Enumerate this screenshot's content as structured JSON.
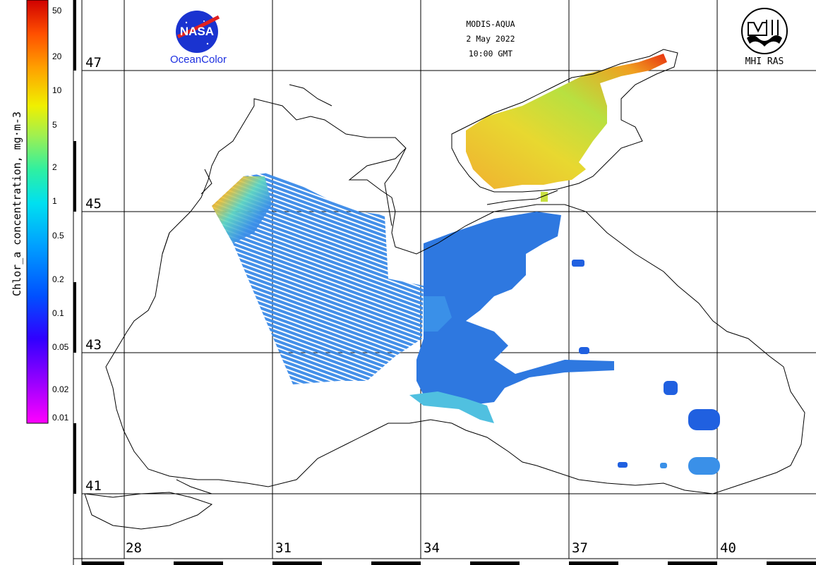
{
  "header": {
    "sensor": "MODIS-AQUA",
    "date": "2 May 2022",
    "time": "10:00 GMT"
  },
  "logos": {
    "nasa_caption": "OceanColor",
    "nasa_text": "NASA",
    "mhi_caption": "MHI RAS"
  },
  "colorbar": {
    "title": "Chlor_a concentration, mg·m-3",
    "ticks": [
      "50",
      "20",
      "10",
      "5",
      "2",
      "1",
      "0.5",
      "0.2",
      "0.1",
      "0.05",
      "0.02",
      "0.01"
    ],
    "colors": [
      "#ff00ff",
      "#a000ff",
      "#3000ff",
      "#0050ff",
      "#00a0ff",
      "#00e0f0",
      "#30f0a0",
      "#a0f050",
      "#f0f000",
      "#ffa000",
      "#ff5000",
      "#d00000"
    ]
  },
  "grid": {
    "latitudes": [
      "47",
      "45",
      "43",
      "41"
    ],
    "longitudes": [
      "28",
      "31",
      "34",
      "37",
      "40"
    ]
  },
  "palette": {
    "coast": "#000000",
    "blue_water": "#2e78e0",
    "light_blue": "#4aa8f0",
    "azov_yellow": "#e8d830",
    "azov_orange": "#f0a030",
    "red": "#e83010"
  }
}
